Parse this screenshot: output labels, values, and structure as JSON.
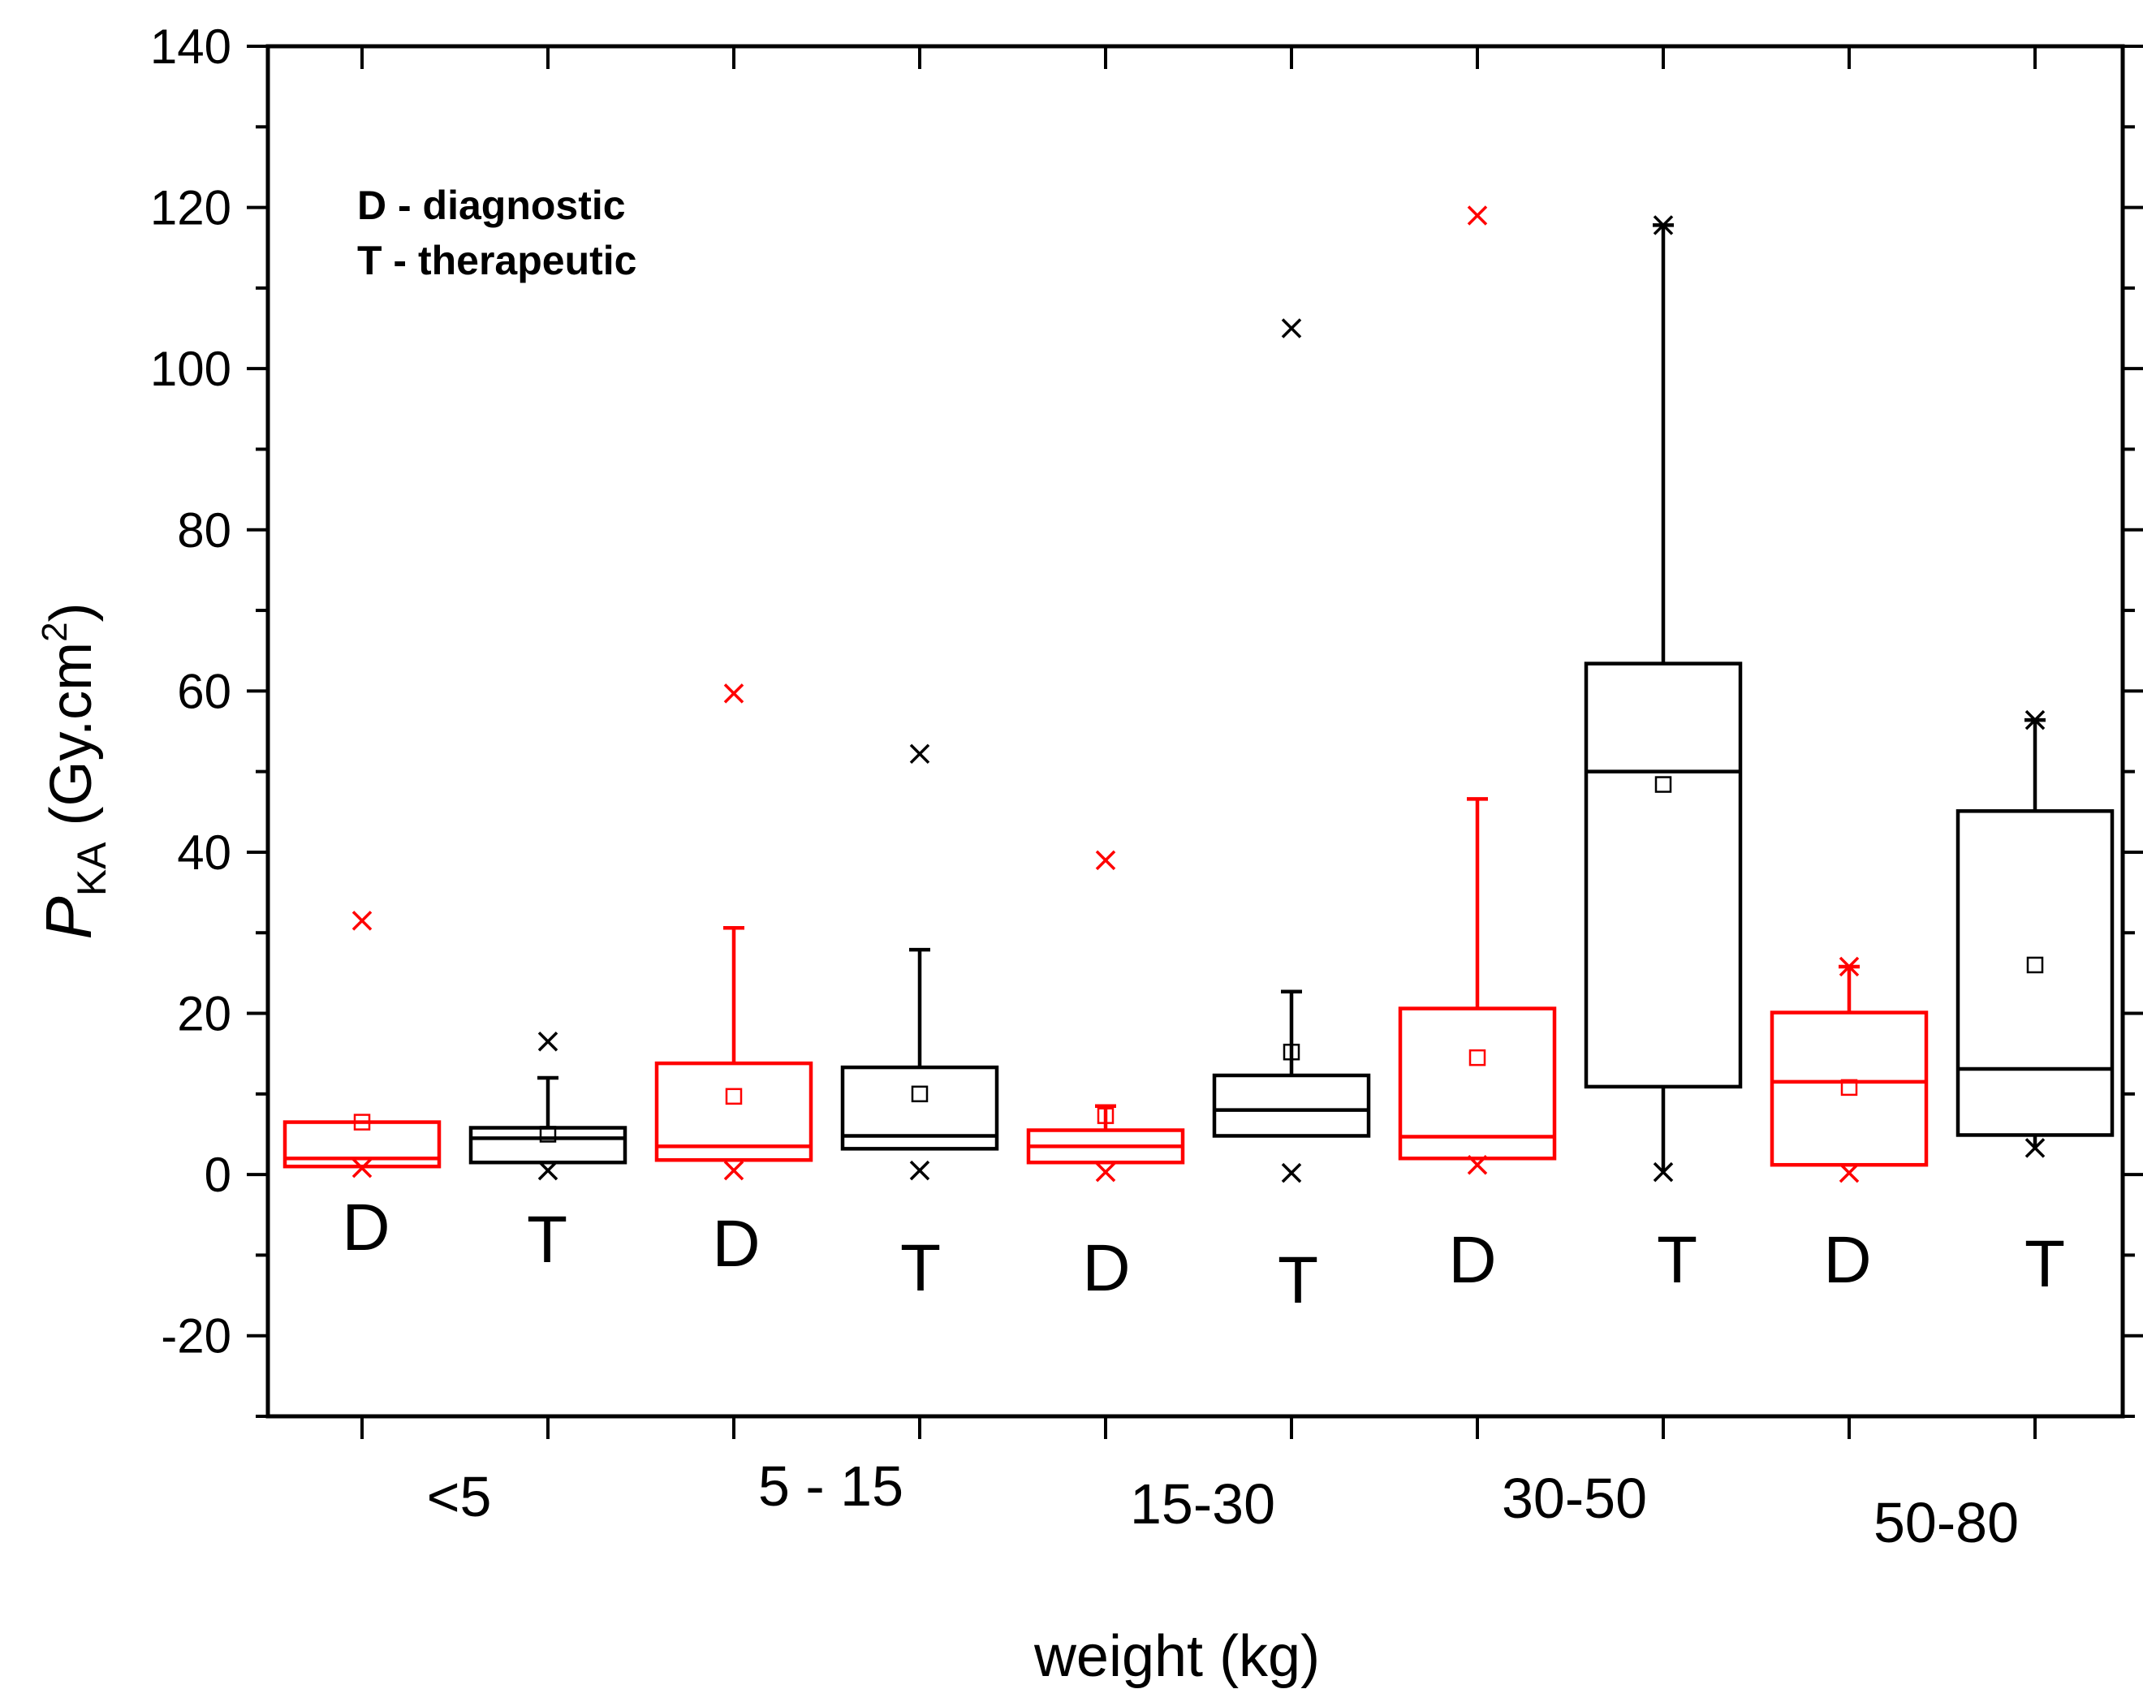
{
  "chart_data": {
    "type": "box",
    "xlabel": "weight (kg)",
    "ylabel": {
      "main": "P",
      "subscript": "KA",
      "unit_open": " (Gy.cm",
      "unit_superscript": "2",
      "unit_close": ")"
    },
    "ylim": [
      -30,
      140
    ],
    "yticks": [
      "140",
      "120",
      "100",
      "80",
      "60",
      "40",
      "20",
      "0",
      "-20"
    ],
    "annotation": [
      "D - diagnostic",
      "T - therapeutic"
    ],
    "colors": {
      "diagnostic": "#ff0000",
      "therapeutic": "#000000"
    },
    "group_labels": [
      "<5",
      "5 - 15",
      "15-30",
      "30-50",
      "50-80"
    ],
    "boxes": [
      {
        "group": "<5",
        "category": "D",
        "color": "#ff0000",
        "q1": 1.0,
        "median": 2.0,
        "q3": 6.5,
        "mean": 6.5,
        "whisker_low": null,
        "whisker_high": null,
        "max_marker": 31.5,
        "min_marker": 0.8
      },
      {
        "group": "<5",
        "category": "T",
        "color": "#000000",
        "q1": 1.5,
        "median": 4.5,
        "q3": 5.8,
        "mean": 5.0,
        "whisker_low": null,
        "whisker_high": 12.0,
        "max_marker": 16.5,
        "min_marker": 0.5
      },
      {
        "group": "5 - 15",
        "category": "D",
        "color": "#ff0000",
        "q1": 1.8,
        "median": 3.5,
        "q3": 13.8,
        "mean": 9.7,
        "whisker_low": null,
        "whisker_high": 30.6,
        "max_marker": 59.7,
        "min_marker": 0.5
      },
      {
        "group": "5 - 15",
        "category": "T",
        "color": "#000000",
        "q1": 3.2,
        "median": 4.8,
        "q3": 13.3,
        "mean": 10.0,
        "whisker_low": null,
        "whisker_high": 27.9,
        "max_marker": 52.2,
        "min_marker": 0.5
      },
      {
        "group": "15-30",
        "category": "D",
        "color": "#ff0000",
        "q1": 1.5,
        "median": 3.5,
        "q3": 5.5,
        "mean": 7.3,
        "whisker_low": null,
        "whisker_high": 8.5,
        "max_marker": 39.0,
        "min_marker": 0.3
      },
      {
        "group": "15-30",
        "category": "T",
        "color": "#000000",
        "q1": 4.8,
        "median": 8.0,
        "q3": 12.3,
        "mean": 15.2,
        "whisker_low": null,
        "whisker_high": 22.7,
        "max_marker": 105.0,
        "min_marker": 0.2
      },
      {
        "group": "30-50",
        "category": "D",
        "color": "#ff0000",
        "q1": 2.0,
        "median": 4.7,
        "q3": 20.6,
        "mean": 14.5,
        "whisker_low": null,
        "whisker_high": 46.6,
        "max_marker": 119.0,
        "min_marker": 1.2
      },
      {
        "group": "30-50",
        "category": "T",
        "color": "#000000",
        "q1": 10.9,
        "median": 50.0,
        "q3": 63.4,
        "mean": 48.4,
        "whisker_low": 0.3,
        "whisker_high": 117.8,
        "max_marker": 117.8,
        "min_marker": 0.3
      },
      {
        "group": "50-80",
        "category": "D",
        "color": "#ff0000",
        "q1": 1.2,
        "median": 11.5,
        "q3": 20.1,
        "mean": 10.8,
        "whisker_low": null,
        "whisker_high": 25.8,
        "max_marker": 25.8,
        "min_marker": 0.2
      },
      {
        "group": "50-80",
        "category": "T",
        "color": "#000000",
        "q1": 4.9,
        "median": 13.1,
        "q3": 45.1,
        "mean": 26.0,
        "whisker_low": 3.3,
        "whisker_high": 56.4,
        "max_marker": 56.4,
        "min_marker": 3.3
      }
    ]
  }
}
